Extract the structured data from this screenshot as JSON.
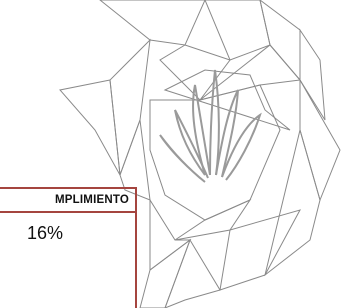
{
  "table": {
    "header": "MPLIMIENTO",
    "rows": [
      [
        "16%"
      ]
    ]
  }
}
